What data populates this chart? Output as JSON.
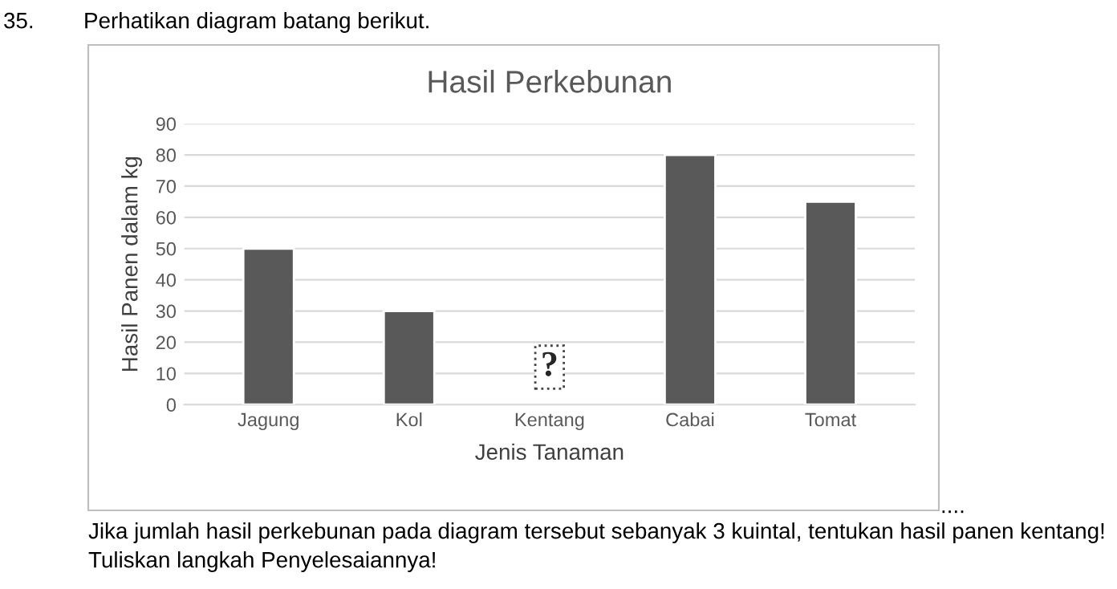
{
  "chart_data": {
    "type": "bar",
    "title": "Hasil Perkebunan",
    "xlabel": "Jenis Tanaman",
    "ylabel": "Hasil Panen dalam kg",
    "categories": [
      "Jagung",
      "Kol",
      "Kentang",
      "Cabai",
      "Tomat"
    ],
    "values": [
      50,
      30,
      null,
      80,
      65
    ],
    "color": "#595959",
    "ylim": [
      0,
      90
    ],
    "yticks": [
      0,
      10,
      20,
      30,
      40,
      50,
      60,
      70,
      80,
      90
    ],
    "grid": "y",
    "annotations": [
      {
        "text": "?",
        "x": "Kentang",
        "y": 12
      },
      "35.",
      "Perhatikan diagram batang berikut.",
      "....",
      "Jika jumlah hasil perkebunan pada diagram tersebut sebanyak 3 kuintal, tentukan hasil panen kentang!",
      "Tuliskan langkah Penyelesaiannya!"
    ]
  }
}
